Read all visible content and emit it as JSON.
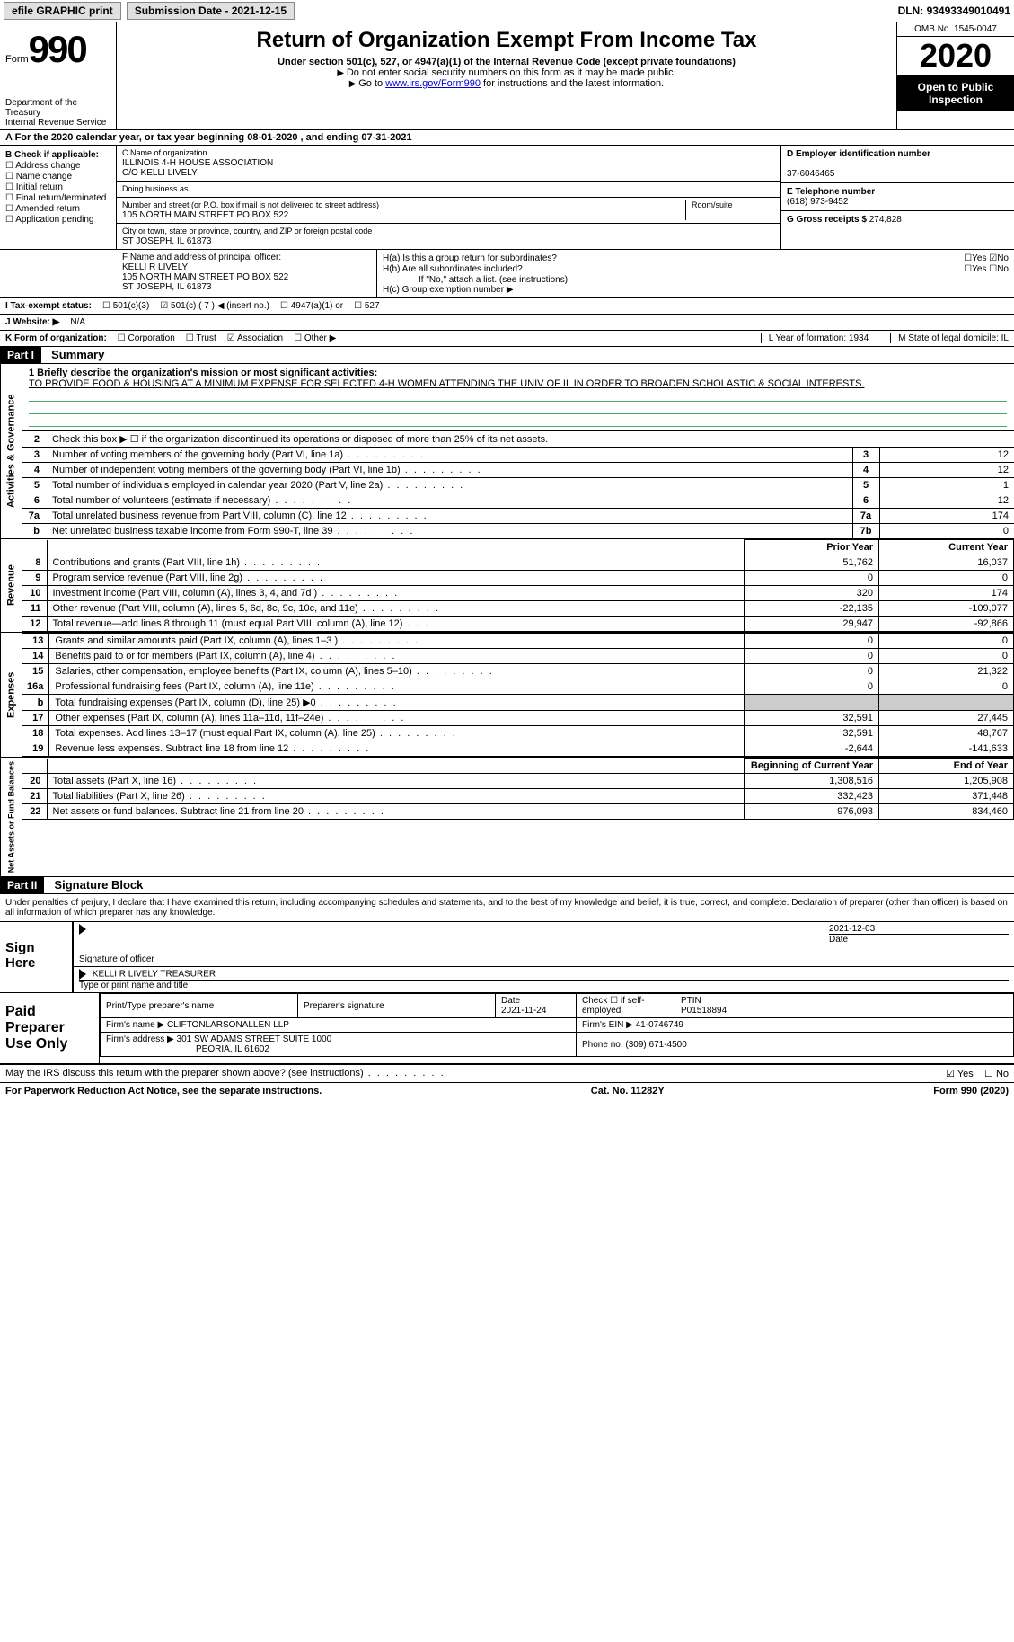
{
  "topbar": {
    "efile": "efile GRAPHIC print",
    "submission_label": "Submission Date - ",
    "submission_date": "2021-12-15",
    "dln_label": "DLN: ",
    "dln": "93493349010491"
  },
  "header": {
    "form_word": "Form",
    "form_num": "990",
    "dept": "Department of the Treasury\nInternal Revenue Service",
    "title": "Return of Organization Exempt From Income Tax",
    "subtitle": "Under section 501(c), 527, or 4947(a)(1) of the Internal Revenue Code (except private foundations)",
    "instr1": "Do not enter social security numbers on this form as it may be made public.",
    "instr2_pre": "Go to ",
    "instr2_link": "www.irs.gov/Form990",
    "instr2_post": " for instructions and the latest information.",
    "omb": "OMB No. 1545-0047",
    "year": "2020",
    "open": "Open to Public Inspection"
  },
  "period": {
    "text_pre": "A For the 2020 calendar year, or tax year beginning ",
    "begin": "08-01-2020",
    "mid": " , and ending ",
    "end": "07-31-2021"
  },
  "boxB": {
    "label": "B Check if applicable:",
    "items": [
      "Address change",
      "Name change",
      "Initial return",
      "Final return/terminated",
      "Amended return",
      "Application pending"
    ]
  },
  "boxC": {
    "name_label": "C Name of organization",
    "name": "ILLINOIS 4-H HOUSE ASSOCIATION",
    "co": "C/O KELLI LIVELY",
    "dba_label": "Doing business as",
    "addr_label": "Number and street (or P.O. box if mail is not delivered to street address)",
    "room_label": "Room/suite",
    "addr": "105 NORTH MAIN STREET PO BOX 522",
    "city_label": "City or town, state or province, country, and ZIP or foreign postal code",
    "city": "ST JOSEPH, IL  61873"
  },
  "boxD": {
    "label": "D Employer identification number",
    "value": "37-6046465"
  },
  "boxE": {
    "label": "E Telephone number",
    "value": "(618) 973-9452"
  },
  "boxG": {
    "label": "G Gross receipts $ ",
    "value": "274,828"
  },
  "boxF": {
    "label": "F Name and address of principal officer:",
    "name": "KELLI R LIVELY",
    "addr1": "105 NORTH MAIN STREET PO BOX 522",
    "addr2": "ST JOSEPH, IL  61873"
  },
  "boxH": {
    "a_label": "H(a)  Is this a group return for subordinates?",
    "a_yes": "Yes",
    "a_no": "No",
    "b_label": "H(b)  Are all subordinates included?",
    "b_note": "If \"No,\" attach a list. (see instructions)",
    "c_label": "H(c)  Group exemption number ▶"
  },
  "taxI": {
    "label": "I   Tax-exempt status:",
    "opts": [
      "501(c)(3)",
      "501(c) ( 7 ) ◀ (insert no.)",
      "4947(a)(1) or",
      "527"
    ]
  },
  "webJ": {
    "label": "J   Website: ▶",
    "value": "N/A"
  },
  "korg": {
    "label": "K Form of organization:",
    "opts": [
      "Corporation",
      "Trust",
      "Association",
      "Other ▶"
    ],
    "L": "L Year of formation: 1934",
    "M": "M State of legal domicile: IL"
  },
  "part1": {
    "header": "Part I",
    "title": "Summary",
    "mission_label": "1  Briefly describe the organization's mission or most significant activities:",
    "mission": "TO PROVIDE FOOD & HOUSING AT A MINIMUM EXPENSE FOR SELECTED 4-H WOMEN ATTENDING THE UNIV OF IL IN ORDER TO BROADEN SCHOLASTIC & SOCIAL INTERESTS.",
    "line2": "Check this box ▶ ☐  if the organization discontinued its operations or disposed of more than 25% of its net assets."
  },
  "gov_rows": [
    {
      "ln": "3",
      "desc": "Number of voting members of the governing body (Part VI, line 1a)",
      "box": "3",
      "val": "12"
    },
    {
      "ln": "4",
      "desc": "Number of independent voting members of the governing body (Part VI, line 1b)",
      "box": "4",
      "val": "12"
    },
    {
      "ln": "5",
      "desc": "Total number of individuals employed in calendar year 2020 (Part V, line 2a)",
      "box": "5",
      "val": "1"
    },
    {
      "ln": "6",
      "desc": "Total number of volunteers (estimate if necessary)",
      "box": "6",
      "val": "12"
    },
    {
      "ln": "7a",
      "desc": "Total unrelated business revenue from Part VIII, column (C), line 12",
      "box": "7a",
      "val": "174"
    },
    {
      "ln": "b",
      "desc": "Net unrelated business taxable income from Form 990-T, line 39",
      "box": "7b",
      "val": "0"
    }
  ],
  "fin_headers": {
    "py": "Prior Year",
    "cy": "Current Year",
    "boy": "Beginning of Current Year",
    "eoy": "End of Year"
  },
  "revenue_rows": [
    {
      "ln": "8",
      "desc": "Contributions and grants (Part VIII, line 1h)",
      "py": "51,762",
      "cy": "16,037"
    },
    {
      "ln": "9",
      "desc": "Program service revenue (Part VIII, line 2g)",
      "py": "0",
      "cy": "0"
    },
    {
      "ln": "10",
      "desc": "Investment income (Part VIII, column (A), lines 3, 4, and 7d )",
      "py": "320",
      "cy": "174"
    },
    {
      "ln": "11",
      "desc": "Other revenue (Part VIII, column (A), lines 5, 6d, 8c, 9c, 10c, and 11e)",
      "py": "-22,135",
      "cy": "-109,077"
    },
    {
      "ln": "12",
      "desc": "Total revenue—add lines 8 through 11 (must equal Part VIII, column (A), line 12)",
      "py": "29,947",
      "cy": "-92,866"
    }
  ],
  "expense_rows": [
    {
      "ln": "13",
      "desc": "Grants and similar amounts paid (Part IX, column (A), lines 1–3 )",
      "py": "0",
      "cy": "0"
    },
    {
      "ln": "14",
      "desc": "Benefits paid to or for members (Part IX, column (A), line 4)",
      "py": "0",
      "cy": "0"
    },
    {
      "ln": "15",
      "desc": "Salaries, other compensation, employee benefits (Part IX, column (A), lines 5–10)",
      "py": "0",
      "cy": "21,322"
    },
    {
      "ln": "16a",
      "desc": "Professional fundraising fees (Part IX, column (A), line 11e)",
      "py": "0",
      "cy": "0"
    },
    {
      "ln": "b",
      "desc": "Total fundraising expenses (Part IX, column (D), line 25) ▶0",
      "py": "",
      "cy": "",
      "shade": true
    },
    {
      "ln": "17",
      "desc": "Other expenses (Part IX, column (A), lines 11a–11d, 11f–24e)",
      "py": "32,591",
      "cy": "27,445"
    },
    {
      "ln": "18",
      "desc": "Total expenses. Add lines 13–17 (must equal Part IX, column (A), line 25)",
      "py": "32,591",
      "cy": "48,767"
    },
    {
      "ln": "19",
      "desc": "Revenue less expenses. Subtract line 18 from line 12",
      "py": "-2,644",
      "cy": "-141,633"
    }
  ],
  "net_rows": [
    {
      "ln": "20",
      "desc": "Total assets (Part X, line 16)",
      "py": "1,308,516",
      "cy": "1,205,908"
    },
    {
      "ln": "21",
      "desc": "Total liabilities (Part X, line 26)",
      "py": "332,423",
      "cy": "371,448"
    },
    {
      "ln": "22",
      "desc": "Net assets or fund balances. Subtract line 21 from line 20",
      "py": "976,093",
      "cy": "834,460"
    }
  ],
  "vtabs": {
    "gov": "Activities & Governance",
    "rev": "Revenue",
    "exp": "Expenses",
    "net": "Net Assets or Fund Balances"
  },
  "part2": {
    "header": "Part II",
    "title": "Signature Block",
    "intro": "Under penalties of perjury, I declare that I have examined this return, including accompanying schedules and statements, and to the best of my knowledge and belief, it is true, correct, and complete. Declaration of preparer (other than officer) is based on all information of which preparer has any knowledge."
  },
  "sign": {
    "label": "Sign Here",
    "sig_of": "Signature of officer",
    "date_label": "Date",
    "date": "2021-12-03",
    "name": "KELLI R LIVELY TREASURER",
    "name_label": "Type or print name and title"
  },
  "prep": {
    "label": "Paid Preparer Use Only",
    "h1": "Print/Type preparer's name",
    "h2": "Preparer's signature",
    "h3": "Date",
    "date": "2021-11-24",
    "h4": "Check ☐ if self-employed",
    "h5": "PTIN",
    "ptin": "P01518894",
    "firm_label": "Firm's name    ▶",
    "firm": "CLIFTONLARSONALLEN LLP",
    "ein_label": "Firm's EIN ▶",
    "ein": "41-0746749",
    "addr_label": "Firm's address ▶",
    "addr1": "301 SW ADAMS STREET SUITE 1000",
    "addr2": "PEORIA, IL  61602",
    "phone_label": "Phone no.",
    "phone": "(309) 671-4500"
  },
  "discuss": {
    "text": "May the IRS discuss this return with the preparer shown above? (see instructions)",
    "yes": "Yes",
    "no": "No"
  },
  "footer": {
    "left": "For Paperwork Reduction Act Notice, see the separate instructions.",
    "mid": "Cat. No. 11282Y",
    "right": "Form 990 (2020)"
  }
}
